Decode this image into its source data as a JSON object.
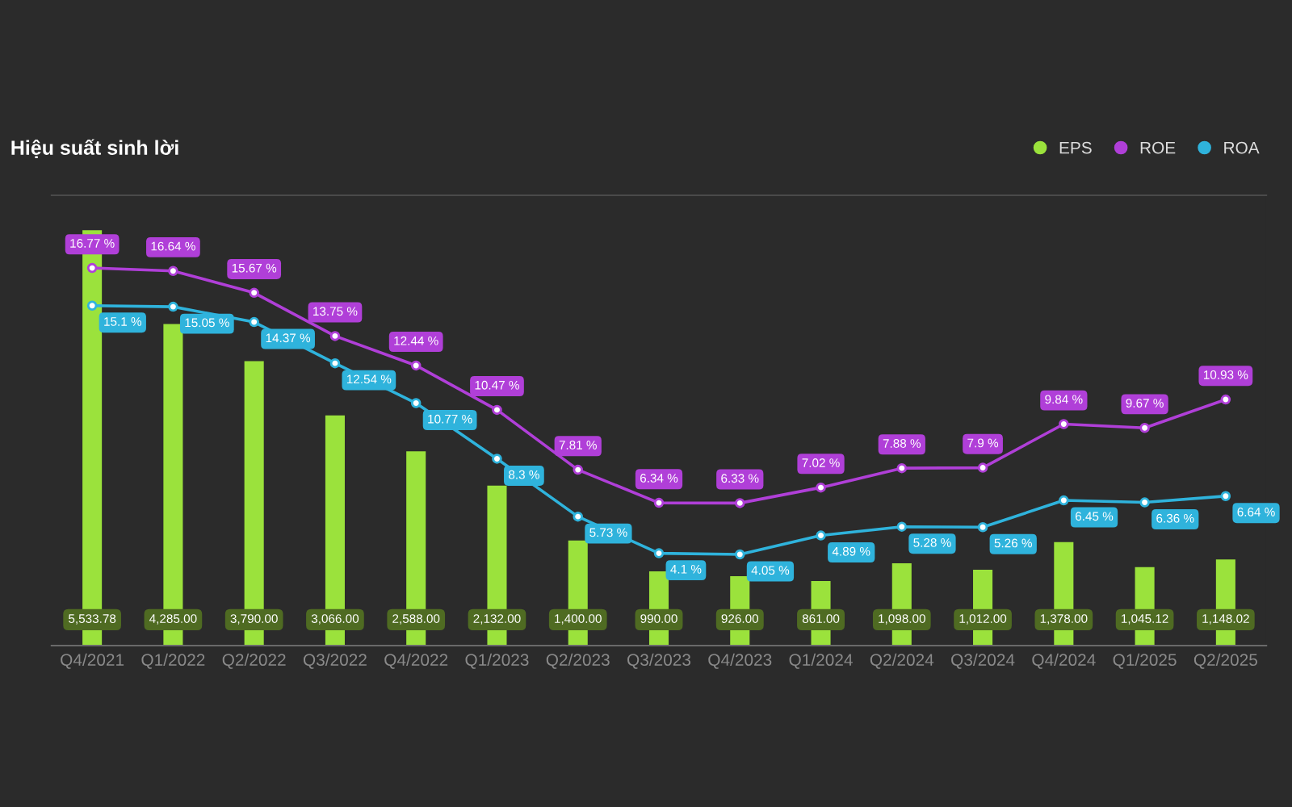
{
  "chart_data": {
    "type": "bar",
    "title": "Hiệu suất sinh lời",
    "categories": [
      "Q4/2021",
      "Q1/2022",
      "Q2/2022",
      "Q3/2022",
      "Q4/2022",
      "Q1/2023",
      "Q2/2023",
      "Q3/2023",
      "Q4/2023",
      "Q1/2024",
      "Q2/2024",
      "Q3/2024",
      "Q4/2024",
      "Q1/2025",
      "Q2/2025"
    ],
    "series": [
      {
        "name": "EPS",
        "type": "bar",
        "color": "#9be23c",
        "values": [
          5533.78,
          4285,
          3790,
          3066,
          2588,
          2132,
          1400,
          990,
          926,
          861,
          1098,
          1012,
          1378,
          1045.12,
          1148.02
        ],
        "value_labels": [
          "5,533.78",
          "4,285.00",
          "3,790.00",
          "3,066.00",
          "2,588.00",
          "2,132.00",
          "1,400.00",
          "990.00",
          "926.00",
          "861.00",
          "1,098.00",
          "1,012.00",
          "1,378.00",
          "1,045.12",
          "1,148.02"
        ]
      },
      {
        "name": "ROE",
        "type": "line",
        "axis": "y2",
        "color": "#b03fd8",
        "values": [
          16.77,
          16.64,
          15.67,
          13.75,
          12.44,
          10.47,
          7.81,
          6.34,
          6.33,
          7.02,
          7.88,
          7.9,
          9.84,
          9.67,
          10.93
        ],
        "value_labels": [
          "16.77 %",
          "16.64 %",
          "15.67 %",
          "13.75 %",
          "12.44 %",
          "10.47 %",
          "7.81 %",
          "6.34 %",
          "6.33 %",
          "7.02 %",
          "7.88 %",
          "7.9 %",
          "9.84 %",
          "9.67 %",
          "10.93 %"
        ]
      },
      {
        "name": "ROA",
        "type": "line",
        "axis": "y2",
        "color": "#2fb3dc",
        "values": [
          15.1,
          15.05,
          14.37,
          12.54,
          10.77,
          8.3,
          5.73,
          4.1,
          4.05,
          4.89,
          5.28,
          5.26,
          6.45,
          6.36,
          6.64
        ],
        "value_labels": [
          "15.1 %",
          "15.05 %",
          "14.37 %",
          "12.54 %",
          "10.77 %",
          "8.3 %",
          "5.73 %",
          "4.1 %",
          "4.05 %",
          "4.89 %",
          "5.28 %",
          "5.26 %",
          "6.45 %",
          "6.36 %",
          "6.64 %"
        ]
      }
    ],
    "ylim": [
      0,
      6000
    ],
    "y2lim": [
      0,
      20
    ],
    "tick_labels": "x",
    "marker": "circle",
    "legend": "top right",
    "grid": false
  }
}
